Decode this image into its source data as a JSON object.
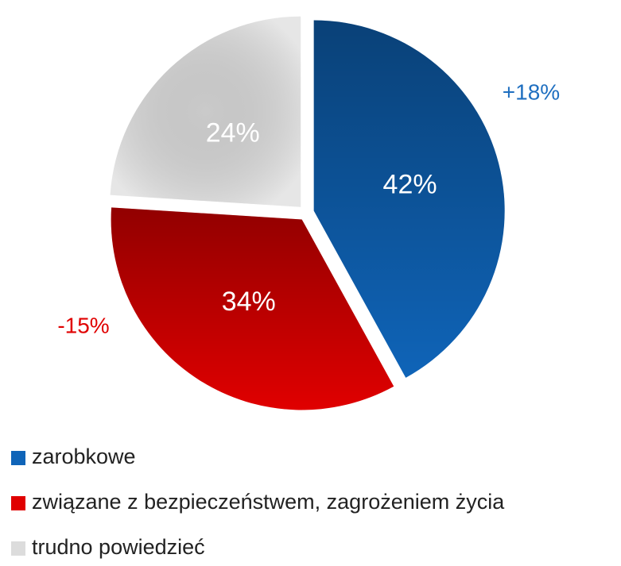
{
  "chart_data": {
    "type": "pie",
    "categories": [
      "zarobkowe",
      "związane z bezpieczeństwem, zagrożeniem życia",
      "trudno powiedzieć"
    ],
    "values": [
      42,
      34,
      24
    ],
    "value_labels": [
      "42%",
      "34%",
      "24%"
    ],
    "colors": [
      "#0f64b8",
      "#e00000",
      "#dcdcdc"
    ],
    "annotations": [
      {
        "text": "+18%",
        "color": "#1f6fc0"
      },
      {
        "text": "-15%",
        "color": "#e00000"
      }
    ],
    "legend": "bottom"
  }
}
